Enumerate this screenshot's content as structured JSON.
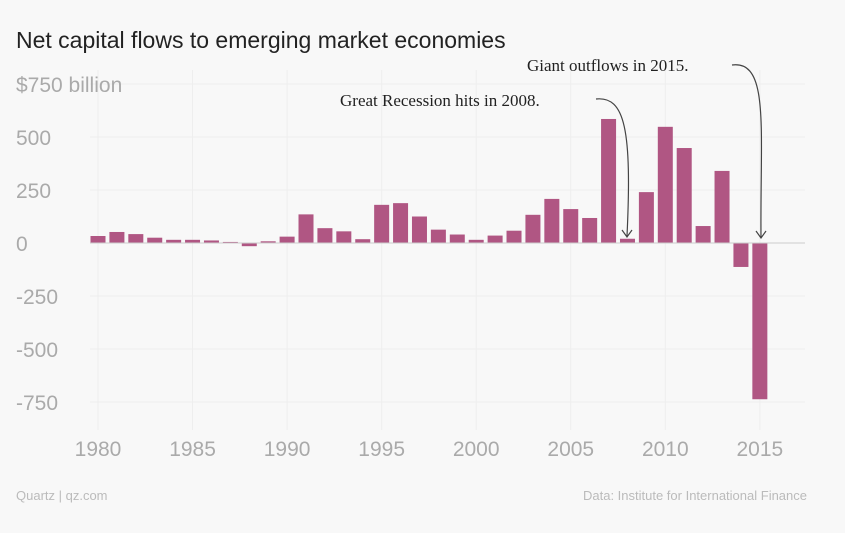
{
  "chart_data": {
    "type": "bar",
    "title": "Net capital flows to emerging market economies",
    "ylabel": "$ billion",
    "y_ticks": [
      750,
      500,
      250,
      0,
      -250,
      -500,
      -750
    ],
    "y_tick_labels": [
      "$750 billion",
      "500",
      "250",
      "0",
      "-250",
      "-500",
      "-750"
    ],
    "x_ticks": [
      1980,
      1985,
      1990,
      1995,
      2000,
      2005,
      2010,
      2015
    ],
    "ylim": [
      -800,
      800
    ],
    "xlim": [
      1978,
      2017
    ],
    "x": [
      1980,
      1981,
      1982,
      1983,
      1984,
      1985,
      1986,
      1987,
      1988,
      1989,
      1990,
      1991,
      1992,
      1993,
      1994,
      1995,
      1996,
      1997,
      1998,
      1999,
      2000,
      2001,
      2002,
      2003,
      2004,
      2005,
      2006,
      2007,
      2008,
      2009,
      2010,
      2011,
      2012,
      2013,
      2014,
      2015
    ],
    "values": [
      33,
      52,
      42,
      25,
      15,
      15,
      12,
      5,
      -15,
      8,
      30,
      135,
      70,
      55,
      18,
      180,
      188,
      125,
      63,
      40,
      15,
      35,
      58,
      133,
      208,
      160,
      118,
      585,
      20,
      240,
      548,
      448,
      80,
      340,
      -113,
      -737
    ],
    "color": "#b05683",
    "grid": true,
    "annotations": [
      {
        "text": "Great Recession hits in 2008.",
        "x": 2008
      },
      {
        "text": "Giant outflows in 2015.",
        "x": 2015
      }
    ],
    "source": "Data: Institute for International Finance",
    "credit": "Quartz | qz.com"
  }
}
